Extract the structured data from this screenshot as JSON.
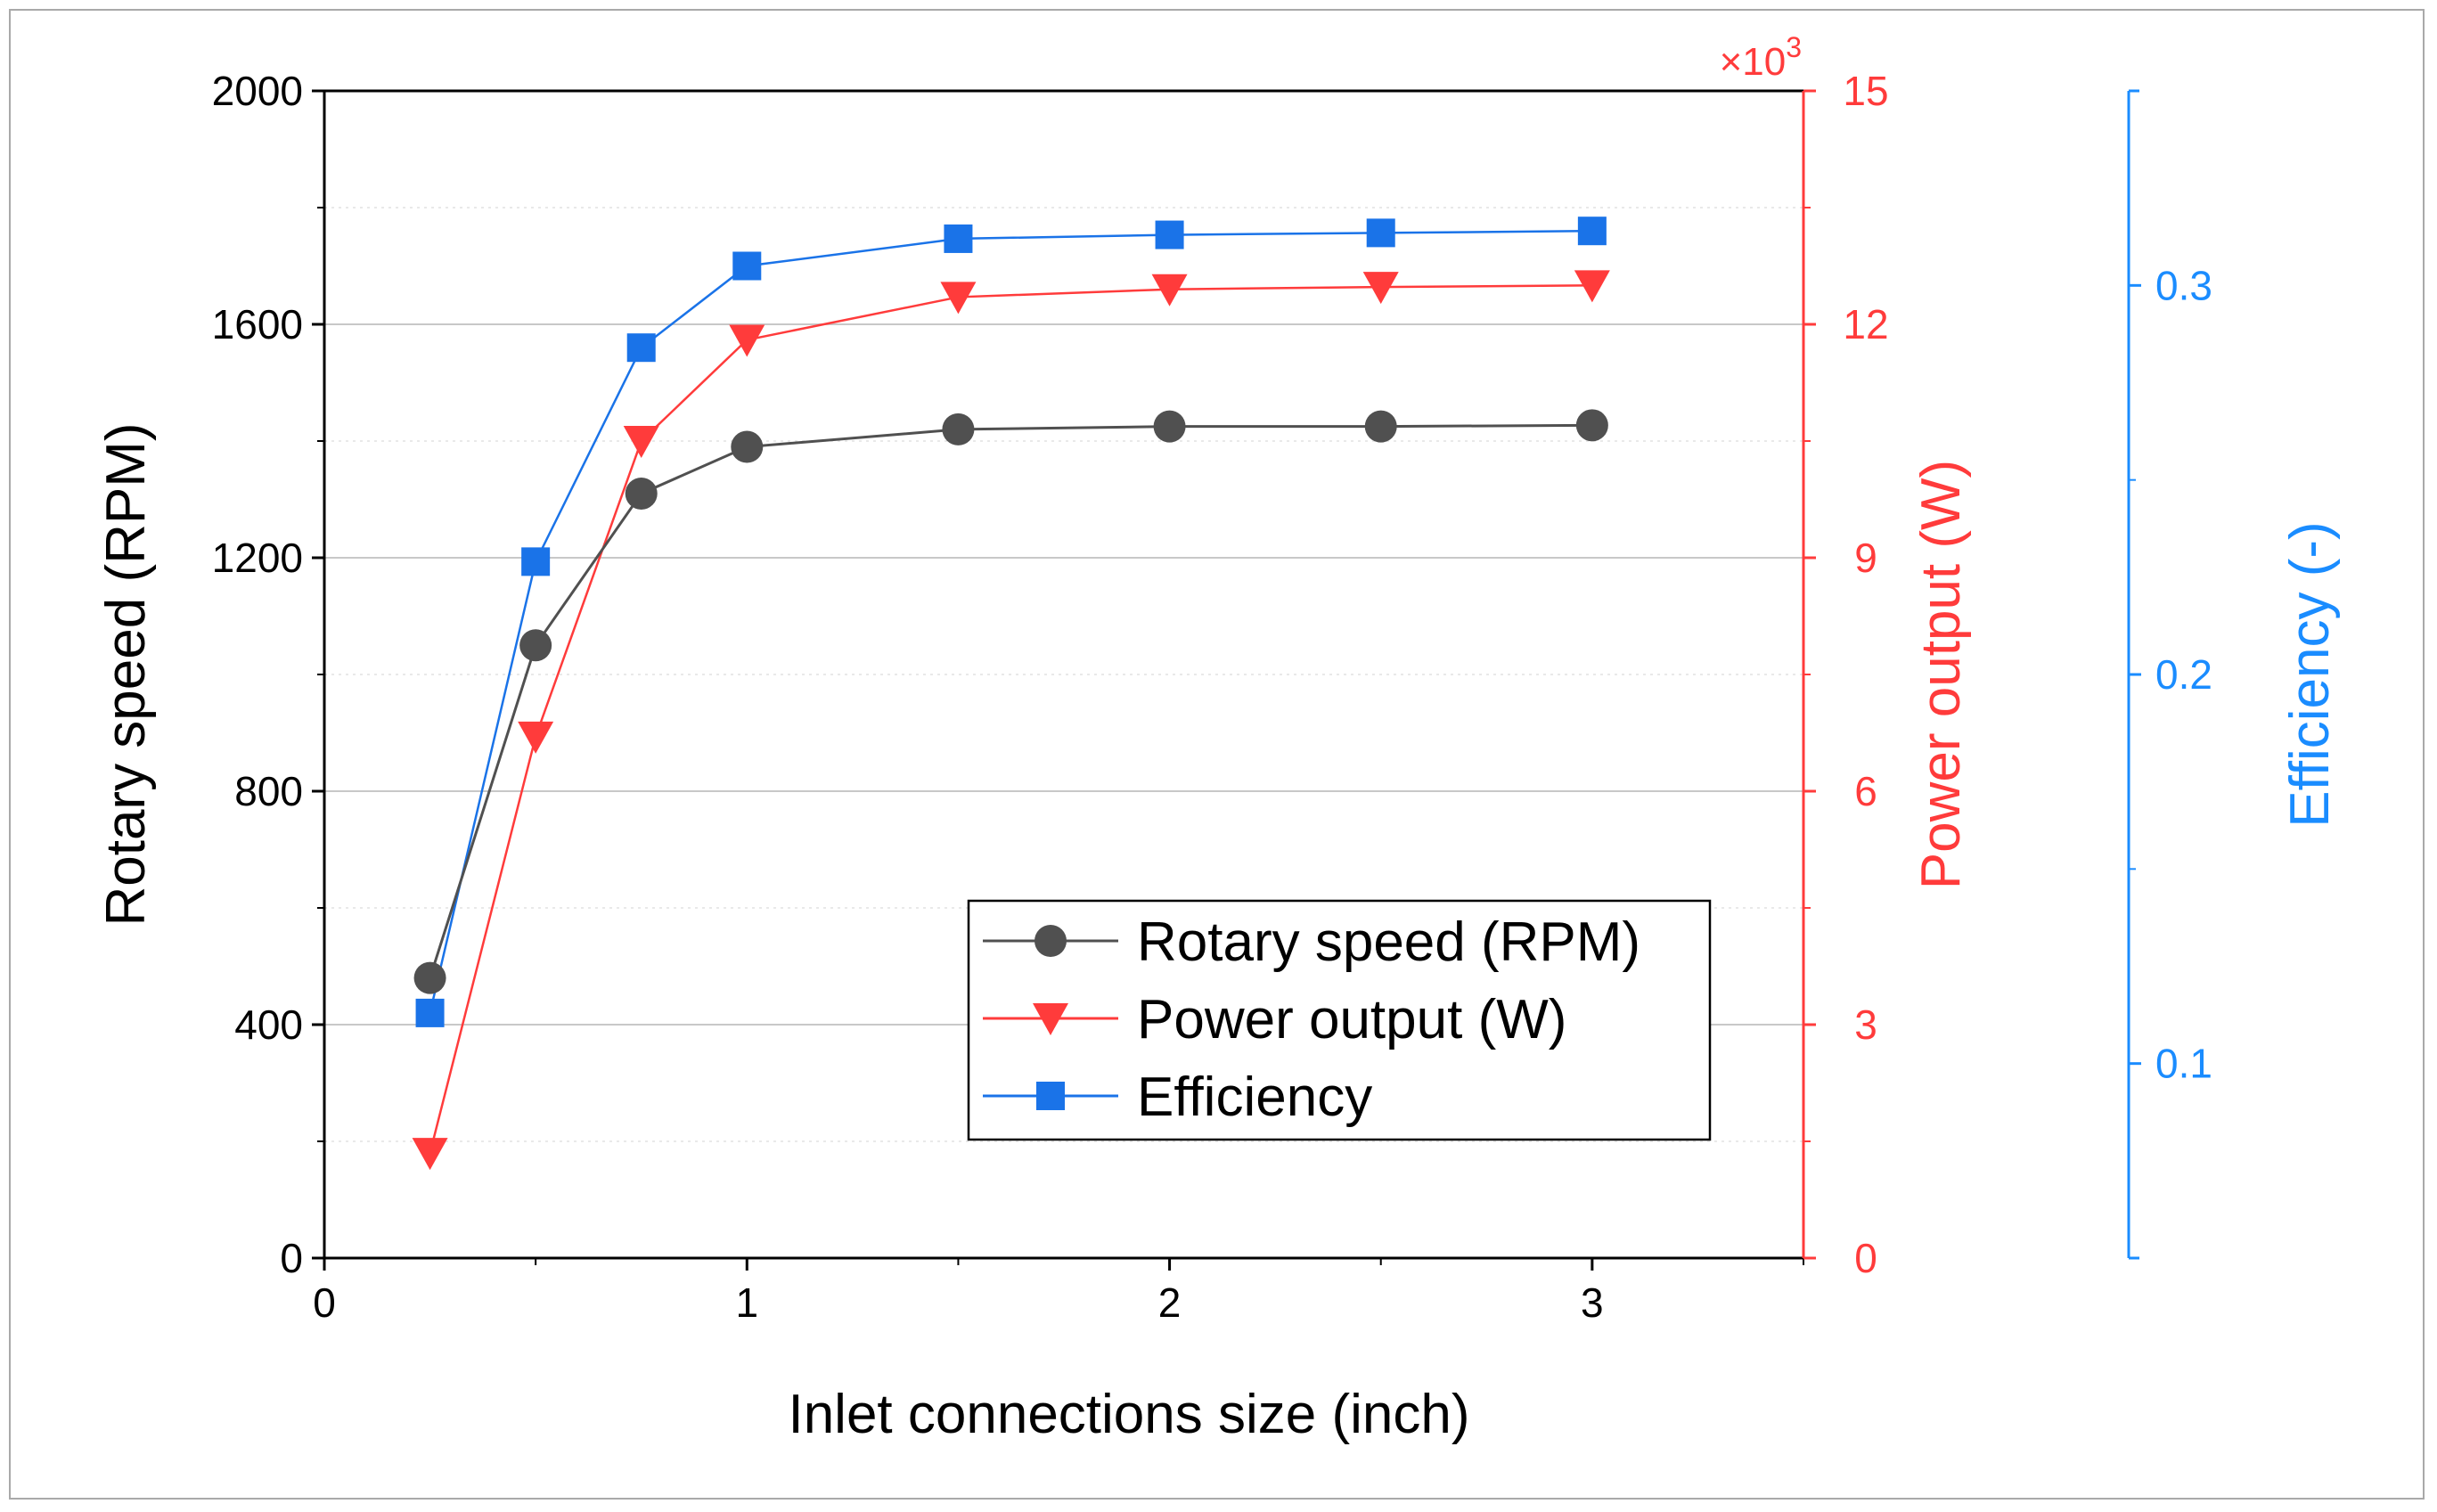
{
  "chart_data": {
    "type": "line",
    "x": [
      0.25,
      0.5,
      0.75,
      1,
      1.5,
      2,
      2.5,
      3
    ],
    "xlabel": "Inlet connections size (inch)",
    "xlim": [
      0,
      3.5
    ],
    "xticks": [
      "0",
      "1",
      "2",
      "3"
    ],
    "grid": true,
    "legend_position": "lower-right inside",
    "axes": {
      "left": {
        "label": "Rotary speed (RPM)",
        "ylim": [
          0,
          2000
        ],
        "ticks": [
          "0",
          "400",
          "800",
          "1200",
          "1600",
          "2000"
        ],
        "color": "#000000"
      },
      "right1": {
        "label": "Power output (W)",
        "ylim": [
          0,
          15
        ],
        "ticks": [
          "0",
          "3",
          "6",
          "9",
          "12",
          "15"
        ],
        "multiplier": "×10",
        "multiplier_exp": "3",
        "color": "#ff3b3b"
      },
      "right2": {
        "label": "Efficiency (-)",
        "ylim": [
          0.05,
          0.35
        ],
        "ticks": [
          "0.1",
          "0.2",
          "0.3"
        ],
        "color": "#1a8cff"
      }
    },
    "series": [
      {
        "name": "Rotary speed (RPM)",
        "axis": "left",
        "marker": "circle",
        "color": "#505050",
        "values": [
          480,
          1050,
          1310,
          1390,
          1420,
          1425,
          1425,
          1427
        ]
      },
      {
        "name": "Power output (W)",
        "axis": "right1",
        "marker": "triangle-down",
        "color": "#ff3b3b",
        "values": [
          1.35,
          6.7,
          10.5,
          11.8,
          12.35,
          12.45,
          12.48,
          12.5
        ]
      },
      {
        "name": "Efficiency",
        "axis": "right2",
        "marker": "square",
        "color": "#1a73e8",
        "values": [
          0.113,
          0.229,
          0.284,
          0.305,
          0.312,
          0.313,
          0.3135,
          0.314
        ]
      }
    ]
  }
}
